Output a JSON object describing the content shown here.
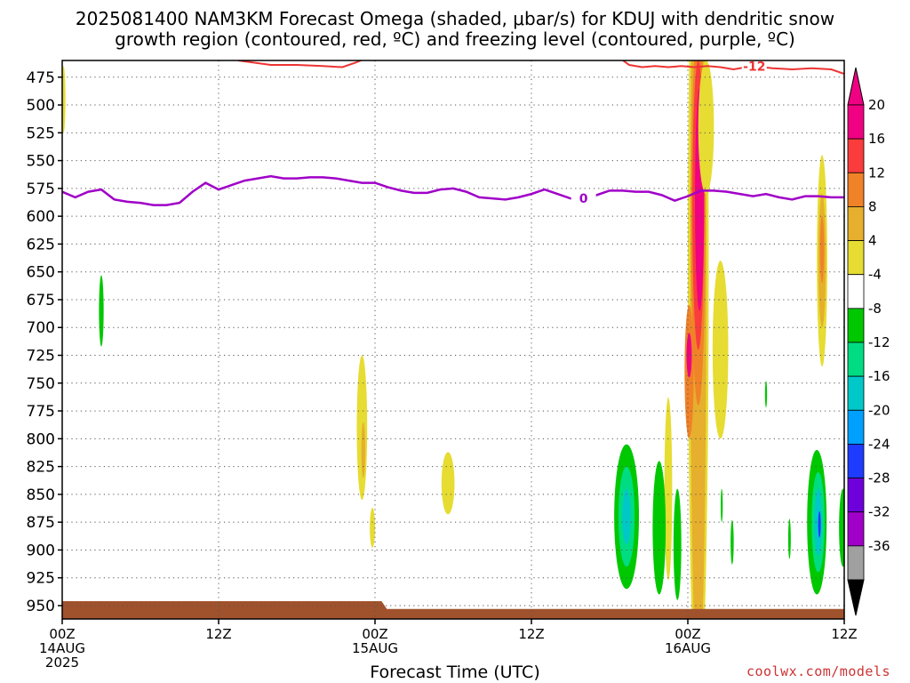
{
  "title_line1": "2025081400 NAM3KM Forecast Omega (shaded, μbar/s) for KDUJ with dendritic snow",
  "title_line2": "growth region (contoured, red, ºC) and freezing level (contoured, purple, ºC)",
  "credit": "coolwx.com/models",
  "colors": {
    "neg36": "#000000",
    "neg32": "#a0a0a0",
    "neg28": "#a000c8",
    "neg24": "#6e00dc",
    "neg20": "#1e3cff",
    "neg16": "#00a0ff",
    "neg12": "#00c8c8",
    "neg8": "#00dc82",
    "neg4": "#00c800",
    "pos4": "#e6dc32",
    "pos8": "#e6af2d",
    "pos12": "#f08228",
    "pos16": "#fa3c3c",
    "pos20": "#f00082",
    "terrain": "#a0522d",
    "dgz_contour": "#ee3333",
    "freezing_contour": "#a000c8"
  },
  "chart_data": {
    "type": "heatmap",
    "title": "2025081400 NAM3KM Forecast Omega (shaded, μbar/s) for KDUJ with dendritic snow growth region (contoured, red, ºC) and freezing level (contoured, purple, ºC)",
    "xlabel": "Forecast Time (UTC)",
    "ylabel": "",
    "x_range_hours": [
      0,
      60
    ],
    "y_range_hPa": [
      460,
      962
    ],
    "y_ticks": [
      475,
      500,
      525,
      550,
      575,
      600,
      625,
      650,
      675,
      700,
      725,
      750,
      775,
      800,
      825,
      850,
      875,
      900,
      925,
      950
    ],
    "x_ticks": [
      {
        "hour": 0,
        "lines": [
          "00Z",
          "14AUG",
          "2025"
        ]
      },
      {
        "hour": 12,
        "lines": [
          "12Z"
        ]
      },
      {
        "hour": 24,
        "lines": [
          "00Z",
          "15AUG"
        ]
      },
      {
        "hour": 36,
        "lines": [
          "12Z"
        ]
      },
      {
        "hour": 48,
        "lines": [
          "00Z",
          "16AUG"
        ]
      },
      {
        "hour": 60,
        "lines": [
          "12Z"
        ]
      }
    ],
    "colorbar": {
      "labels": [
        "20",
        "16",
        "12",
        "8",
        "4",
        "-4",
        "-8",
        "-12",
        "-16",
        "-20",
        "-24",
        "-28",
        "-32",
        "-36"
      ],
      "bands": [
        "pos20",
        "pos16",
        "pos12",
        "pos8",
        "pos4",
        "white",
        "neg4",
        "neg8",
        "neg12",
        "neg16",
        "neg20",
        "neg24",
        "neg28",
        "neg32"
      ]
    },
    "grid": true,
    "contour_labels": [
      {
        "text": "-12",
        "hour": 53.1,
        "pres": 465,
        "color": "dgz_contour"
      },
      {
        "text": "0",
        "hour": 40.0,
        "pres": 584,
        "color": "freezing_contour"
      }
    ],
    "freezing_level": {
      "label": "0",
      "hours": [
        0,
        1,
        2,
        3,
        4,
        5,
        6,
        7,
        8,
        9,
        10,
        11,
        12,
        13,
        14,
        15,
        16,
        17,
        18,
        19,
        20,
        21,
        22,
        23,
        24,
        25,
        26,
        27,
        28,
        29,
        30,
        31,
        32,
        33,
        34,
        35,
        36,
        37,
        38,
        39,
        40,
        41,
        42,
        43,
        44,
        45,
        46,
        47,
        48,
        49,
        50,
        51,
        52,
        53,
        54,
        55,
        56,
        57,
        58,
        59,
        60
      ],
      "pres": [
        578,
        583,
        578,
        576,
        585,
        587,
        588,
        590,
        590,
        588,
        578,
        570,
        576,
        572,
        568,
        566,
        564,
        566,
        566,
        565,
        565,
        566,
        568,
        570,
        570,
        574,
        577,
        579,
        579,
        576,
        575,
        578,
        583,
        584,
        585,
        583,
        580,
        576,
        580,
        584,
        584,
        581,
        577,
        577,
        578,
        578,
        581,
        586,
        582,
        577,
        577,
        578,
        580,
        582,
        580,
        583,
        585,
        582,
        582,
        583,
        583
      ]
    },
    "dgz_minus12": {
      "label": "-12",
      "segments": [
        {
          "hours": [
            13.5,
            16,
            18,
            20,
            21.5,
            22.5,
            23.3
          ],
          "pres": [
            460,
            464,
            464,
            465,
            466,
            462,
            458
          ]
        },
        {
          "hours": [
            42.8,
            43.5,
            44.5,
            45.5,
            46.5,
            47.5,
            48.5,
            49.5,
            50.5,
            51.5,
            53,
            54.5,
            56,
            57.5,
            59,
            60
          ],
          "pres": [
            458,
            464,
            466,
            465,
            466,
            465,
            466,
            465,
            466,
            468,
            465,
            467,
            468,
            467,
            468,
            472
          ]
        }
      ]
    },
    "omega_regions": [
      {
        "band": "pos4",
        "cx": 48.8,
        "cy": 650,
        "rx": 0.8,
        "ry": 400
      },
      {
        "band": "pos8",
        "cx": 48.8,
        "cy": 650,
        "rx": 0.62,
        "ry": 370
      },
      {
        "band": "pos12",
        "cx": 48.8,
        "cy": 600,
        "rx": 0.55,
        "ry": 170
      },
      {
        "band": "pos16",
        "cx": 48.8,
        "cy": 590,
        "rx": 0.45,
        "ry": 130
      },
      {
        "band": "pos20",
        "cx": 48.9,
        "cy": 585,
        "rx": 0.35,
        "ry": 100
      },
      {
        "band": "pos12",
        "cx": 48.1,
        "cy": 740,
        "rx": 0.35,
        "ry": 60
      },
      {
        "band": "pos20",
        "cx": 48.1,
        "cy": 725,
        "rx": 0.2,
        "ry": 20
      },
      {
        "band": "pos4",
        "cx": 50.5,
        "cy": 720,
        "rx": 0.6,
        "ry": 80
      },
      {
        "band": "pos4",
        "cx": 49.4,
        "cy": 520,
        "rx": 0.6,
        "ry": 60
      },
      {
        "band": "pos4",
        "cx": 58.3,
        "cy": 640,
        "rx": 0.4,
        "ry": 95
      },
      {
        "band": "pos8",
        "cx": 58.3,
        "cy": 640,
        "rx": 0.28,
        "ry": 60
      },
      {
        "band": "pos12",
        "cx": 58.3,
        "cy": 630,
        "rx": 0.15,
        "ry": 30
      },
      {
        "band": "pos4",
        "cx": 23.0,
        "cy": 790,
        "rx": 0.4,
        "ry": 65
      },
      {
        "band": "pos8",
        "cx": 23.1,
        "cy": 810,
        "rx": 0.15,
        "ry": 25
      },
      {
        "band": "pos4",
        "cx": 23.8,
        "cy": 880,
        "rx": 0.2,
        "ry": 18
      },
      {
        "band": "pos4",
        "cx": 29.6,
        "cy": 840,
        "rx": 0.5,
        "ry": 28
      },
      {
        "band": "pos4",
        "cx": 0.1,
        "cy": 495,
        "rx": 0.15,
        "ry": 30
      },
      {
        "band": "pos4",
        "cx": 46.5,
        "cy": 845,
        "rx": 0.3,
        "ry": 82
      },
      {
        "band": "neg4",
        "cx": 3.0,
        "cy": 685,
        "rx": 0.18,
        "ry": 32
      },
      {
        "band": "neg4",
        "cx": 43.3,
        "cy": 870,
        "rx": 0.95,
        "ry": 65
      },
      {
        "band": "neg8",
        "cx": 43.3,
        "cy": 870,
        "rx": 0.62,
        "ry": 45
      },
      {
        "band": "neg12",
        "cx": 43.3,
        "cy": 870,
        "rx": 0.32,
        "ry": 25
      },
      {
        "band": "neg4",
        "cx": 45.8,
        "cy": 880,
        "rx": 0.5,
        "ry": 60
      },
      {
        "band": "neg4",
        "cx": 47.2,
        "cy": 895,
        "rx": 0.3,
        "ry": 50
      },
      {
        "band": "neg4",
        "cx": 57.9,
        "cy": 875,
        "rx": 0.75,
        "ry": 65
      },
      {
        "band": "neg8",
        "cx": 58.0,
        "cy": 875,
        "rx": 0.5,
        "ry": 45
      },
      {
        "band": "neg12",
        "cx": 58.0,
        "cy": 875,
        "rx": 0.28,
        "ry": 30
      },
      {
        "band": "neg20",
        "cx": 58.1,
        "cy": 877,
        "rx": 0.1,
        "ry": 12
      },
      {
        "band": "neg4",
        "cx": 59.9,
        "cy": 880,
        "rx": 0.3,
        "ry": 35
      },
      {
        "band": "neg4",
        "cx": 55.8,
        "cy": 890,
        "rx": 0.1,
        "ry": 18
      },
      {
        "band": "neg4",
        "cx": 54.0,
        "cy": 760,
        "rx": 0.08,
        "ry": 12
      },
      {
        "band": "neg4",
        "cx": 51.4,
        "cy": 893,
        "rx": 0.12,
        "ry": 20
      },
      {
        "band": "neg4",
        "cx": 50.6,
        "cy": 860,
        "rx": 0.08,
        "ry": 15
      }
    ],
    "terrain": {
      "pres_top": 946,
      "pres_top_late": 953,
      "change_hour": 24.5
    }
  }
}
